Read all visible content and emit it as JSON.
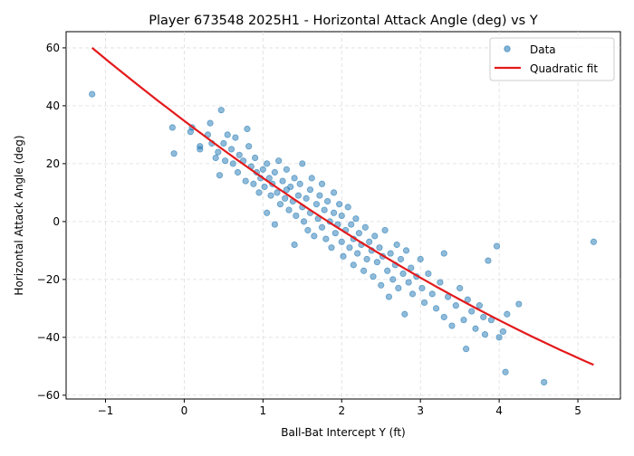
{
  "chart_data": {
    "type": "scatter",
    "title": "Player 673548 2025H1 - Horizontal Attack Angle (deg) vs Y",
    "xlabel": "Ball-Bat Intercept Y (ft)",
    "ylabel": "Horizontal Attack Angle (deg)",
    "xlim": [
      -1.5,
      5.54
    ],
    "ylim": [
      -61.3,
      65.6
    ],
    "xticks": [
      -1,
      0,
      1,
      2,
      3,
      4,
      5
    ],
    "yticks": [
      -60,
      -40,
      -20,
      0,
      20,
      40,
      60
    ],
    "grid": true,
    "legend": {
      "placement": "top-right",
      "entries": [
        "Data",
        "Quadratic fit"
      ]
    },
    "colors": {
      "data": "#1f77b4",
      "fit": "#e31a1c"
    },
    "fit": {
      "coefficients": {
        "a": 34.79,
        "b": -20.57,
        "c": 0.838
      },
      "x_range": [
        -1.17,
        5.2
      ]
    },
    "points": [
      [
        -1.17,
        44
      ],
      [
        -0.15,
        32.5
      ],
      [
        -0.13,
        23.5
      ],
      [
        0.08,
        31
      ],
      [
        0.1,
        32.5
      ],
      [
        0.2,
        25
      ],
      [
        0.2,
        26
      ],
      [
        0.3,
        30
      ],
      [
        0.33,
        34
      ],
      [
        0.35,
        27
      ],
      [
        0.4,
        22
      ],
      [
        0.43,
        24
      ],
      [
        0.45,
        16
      ],
      [
        0.47,
        38.5
      ],
      [
        0.5,
        27
      ],
      [
        0.52,
        21
      ],
      [
        0.55,
        30
      ],
      [
        0.6,
        25
      ],
      [
        0.62,
        20
      ],
      [
        0.65,
        29
      ],
      [
        0.68,
        17
      ],
      [
        0.7,
        23
      ],
      [
        0.75,
        21
      ],
      [
        0.78,
        14
      ],
      [
        0.8,
        32
      ],
      [
        0.82,
        26
      ],
      [
        0.85,
        19
      ],
      [
        0.88,
        13
      ],
      [
        0.9,
        22
      ],
      [
        0.92,
        17
      ],
      [
        0.95,
        10
      ],
      [
        0.97,
        15
      ],
      [
        1.0,
        18
      ],
      [
        1.02,
        12
      ],
      [
        1.05,
        20
      ],
      [
        1.05,
        3
      ],
      [
        1.08,
        15
      ],
      [
        1.1,
        9
      ],
      [
        1.12,
        13
      ],
      [
        1.15,
        17
      ],
      [
        1.15,
        -1
      ],
      [
        1.18,
        10
      ],
      [
        1.2,
        21
      ],
      [
        1.22,
        6
      ],
      [
        1.25,
        14
      ],
      [
        1.28,
        8
      ],
      [
        1.3,
        11
      ],
      [
        1.3,
        18
      ],
      [
        1.33,
        4
      ],
      [
        1.35,
        12
      ],
      [
        1.38,
        7
      ],
      [
        1.4,
        -8
      ],
      [
        1.4,
        15
      ],
      [
        1.42,
        2
      ],
      [
        1.45,
        9
      ],
      [
        1.47,
        13
      ],
      [
        1.5,
        5
      ],
      [
        1.5,
        20
      ],
      [
        1.52,
        0
      ],
      [
        1.55,
        8
      ],
      [
        1.57,
        -3
      ],
      [
        1.6,
        11
      ],
      [
        1.6,
        3
      ],
      [
        1.62,
        15
      ],
      [
        1.65,
        -5
      ],
      [
        1.68,
        6
      ],
      [
        1.7,
        1
      ],
      [
        1.72,
        9
      ],
      [
        1.75,
        -2
      ],
      [
        1.75,
        13
      ],
      [
        1.78,
        4
      ],
      [
        1.8,
        -6
      ],
      [
        1.82,
        7
      ],
      [
        1.85,
        0
      ],
      [
        1.87,
        -9
      ],
      [
        1.9,
        3
      ],
      [
        1.9,
        10
      ],
      [
        1.92,
        -4
      ],
      [
        1.95,
        -1
      ],
      [
        1.97,
        6
      ],
      [
        2.0,
        -7
      ],
      [
        2.0,
        2
      ],
      [
        2.02,
        -12
      ],
      [
        2.05,
        -3
      ],
      [
        2.08,
        5
      ],
      [
        2.1,
        -9
      ],
      [
        2.12,
        -1
      ],
      [
        2.15,
        -15
      ],
      [
        2.15,
        -6
      ],
      [
        2.18,
        1
      ],
      [
        2.2,
        -11
      ],
      [
        2.22,
        -4
      ],
      [
        2.25,
        -8
      ],
      [
        2.28,
        -17
      ],
      [
        2.3,
        -2
      ],
      [
        2.32,
        -13
      ],
      [
        2.35,
        -7
      ],
      [
        2.38,
        -10
      ],
      [
        2.4,
        -19
      ],
      [
        2.42,
        -5
      ],
      [
        2.45,
        -14
      ],
      [
        2.48,
        -9
      ],
      [
        2.5,
        -22
      ],
      [
        2.52,
        -12
      ],
      [
        2.55,
        -3
      ],
      [
        2.58,
        -17
      ],
      [
        2.6,
        -26
      ],
      [
        2.62,
        -11
      ],
      [
        2.65,
        -20
      ],
      [
        2.68,
        -15
      ],
      [
        2.7,
        -8
      ],
      [
        2.72,
        -23
      ],
      [
        2.75,
        -13
      ],
      [
        2.78,
        -18
      ],
      [
        2.8,
        -32
      ],
      [
        2.82,
        -10
      ],
      [
        2.85,
        -21
      ],
      [
        2.88,
        -16
      ],
      [
        2.9,
        -25
      ],
      [
        2.95,
        -19
      ],
      [
        3.0,
        -13
      ],
      [
        3.02,
        -23
      ],
      [
        3.05,
        -28
      ],
      [
        3.1,
        -18
      ],
      [
        3.15,
        -25
      ],
      [
        3.2,
        -30
      ],
      [
        3.25,
        -21
      ],
      [
        3.3,
        -11
      ],
      [
        3.3,
        -33
      ],
      [
        3.35,
        -26
      ],
      [
        3.4,
        -36
      ],
      [
        3.45,
        -29
      ],
      [
        3.5,
        -23
      ],
      [
        3.55,
        -34
      ],
      [
        3.58,
        -44
      ],
      [
        3.6,
        -27
      ],
      [
        3.65,
        -31
      ],
      [
        3.7,
        -37
      ],
      [
        3.75,
        -29
      ],
      [
        3.8,
        -33
      ],
      [
        3.82,
        -39
      ],
      [
        3.86,
        -13.5
      ],
      [
        3.9,
        -34
      ],
      [
        3.97,
        -8.5
      ],
      [
        4.0,
        -40
      ],
      [
        4.05,
        -38
      ],
      [
        4.08,
        -52
      ],
      [
        4.1,
        -32
      ],
      [
        4.25,
        -28.5
      ],
      [
        4.57,
        -55.5
      ],
      [
        5.2,
        -7
      ]
    ]
  }
}
